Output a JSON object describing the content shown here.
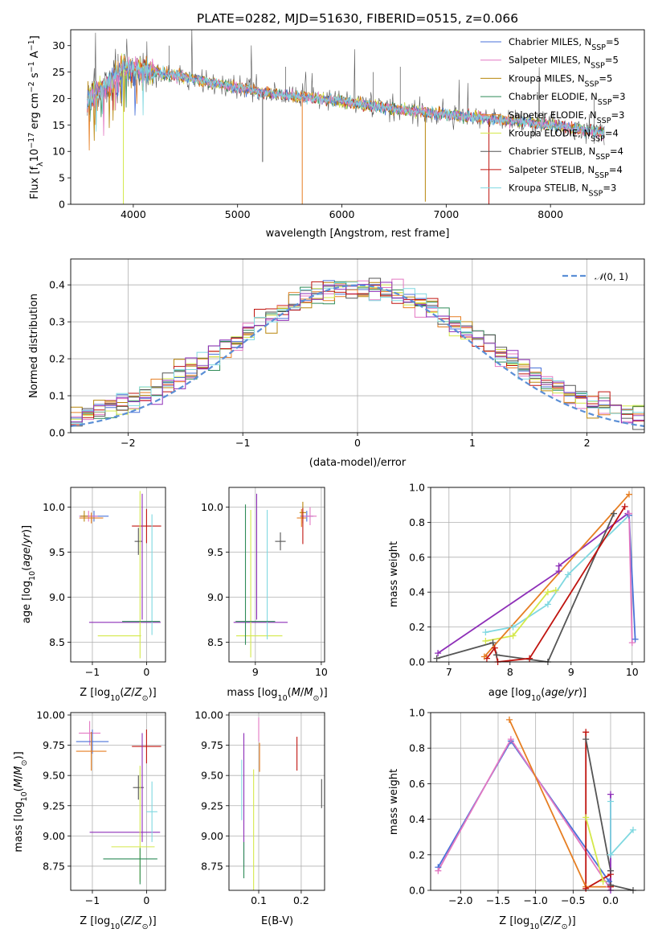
{
  "figure": {
    "title": "PLATE=0282, MJD=51630, FIBERID=0515, z=0.066"
  },
  "colors": {
    "Chabrier MILES": "#4a72d8",
    "Salpeter MILES": "#e377c2",
    "Kroupa MILES": "#b8860b",
    "Chabrier ELODIE": "#2e8b57",
    "Salpeter ELODIE": "#e67e22",
    "Kroupa ELODIE": "#d4e84a",
    "Chabrier STELIB": "#555555",
    "Salpeter STELIB": "#c0140f",
    "Kroupa STELIB": "#7fd8e0",
    "purple": "#8e2fb8",
    "normal": "#5b8fd6",
    "grid": "#b0b0b0"
  },
  "chart_data": [
    {
      "id": "spectrum",
      "type": "line",
      "title": "PLATE=0282, MJD=51630, FIBERID=0515, z=0.066",
      "xlabel": "wavelength [Angstrom, rest frame]",
      "ylabel": "Flux [fλ 10^-17 erg cm^-2 s^-1 A^-1]",
      "xlim": [
        3400,
        8900
      ],
      "ylim": [
        0,
        33
      ],
      "xticks": [
        4000,
        5000,
        6000,
        7000,
        8000
      ],
      "yticks": [
        0,
        5,
        10,
        15,
        20,
        25,
        30
      ],
      "grid": false,
      "legend_position": "top-right",
      "legend": [
        {
          "name": "Chabrier MILES",
          "sub": "SSP",
          "n": "5"
        },
        {
          "name": "Salpeter MILES",
          "sub": "SSP",
          "n": "5"
        },
        {
          "name": "Kroupa MILES",
          "sub": "SSP",
          "n": "5"
        },
        {
          "name": "Chabrier ELODIE",
          "sub": "SSP",
          "n": "3"
        },
        {
          "name": "Salpeter ELODIE",
          "sub": "SSP",
          "n": "3"
        },
        {
          "name": "Kroupa ELODIE",
          "sub": "SSP",
          "n": "4"
        },
        {
          "name": "Chabrier STELIB",
          "sub": "SSP",
          "n": "4"
        },
        {
          "name": "Salpeter STELIB",
          "sub": "SSP",
          "n": "4"
        },
        {
          "name": "Kroupa STELIB",
          "sub": "SSP",
          "n": "3"
        }
      ],
      "continuum": [
        [
          3560,
          20.5
        ],
        [
          3700,
          21.5
        ],
        [
          3800,
          23.5
        ],
        [
          3900,
          25.5
        ],
        [
          4000,
          25.5
        ],
        [
          4200,
          25
        ],
        [
          4500,
          24
        ],
        [
          5000,
          22
        ],
        [
          5500,
          20.5
        ],
        [
          6000,
          19.5
        ],
        [
          6500,
          18
        ],
        [
          7000,
          17
        ],
        [
          7500,
          16
        ],
        [
          8000,
          15
        ],
        [
          8500,
          13.5
        ]
      ],
      "spikes": [
        [
          3905,
          0
        ],
        [
          5240,
          8
        ],
        [
          5620,
          0
        ],
        [
          6800,
          0.5
        ],
        [
          7410,
          0
        ]
      ]
    },
    {
      "id": "residuals",
      "type": "line",
      "xlabel": "(data-model)/error",
      "ylabel": "Normed distribution",
      "xlim": [
        -2.5,
        2.5
      ],
      "ylim": [
        0,
        0.47
      ],
      "xticks": [
        -2,
        -1,
        0,
        1,
        2
      ],
      "yticks": [
        0.0,
        0.1,
        0.2,
        0.3,
        0.4
      ],
      "grid": true,
      "legend_position": "top-right",
      "legend": [
        {
          "name": "N(0,1)"
        }
      ],
      "bin_width": 0.1,
      "bin_start": -2.5
    },
    {
      "id": "age-vs-Z",
      "type": "scatter",
      "xlabel": "Z [log10(Z/Z⊙)]",
      "ylabel": "age  [log10(age/yr)]",
      "xlim": [
        -1.4,
        0.35
      ],
      "ylim": [
        8.28,
        10.22
      ],
      "xticks": [
        -1,
        0
      ],
      "yticks": [
        8.5,
        9.0,
        9.5,
        10.0
      ],
      "grid": true,
      "points": [
        {
          "c": "Chabrier MILES",
          "x": -0.97,
          "y": 9.9,
          "xe": 0.27,
          "ye": 0.06
        },
        {
          "c": "Salpeter MILES",
          "x": -1.07,
          "y": 9.9,
          "xe": 0.17,
          "ye": 0.06
        },
        {
          "c": "Salpeter ELODIE",
          "x": -1.02,
          "y": 9.88,
          "xe": 0.22,
          "ye": 0.06
        },
        {
          "c": "Kroupa MILES",
          "x": -1.15,
          "y": 9.9,
          "xe": 0.07,
          "ye": 0.06
        },
        {
          "c": "Chabrier STELIB",
          "x": -0.15,
          "y": 9.62,
          "xe": 0.07,
          "ye": 0.15
        },
        {
          "c": "Salpeter STELIB",
          "x": 0.0,
          "y": 9.79,
          "xe": 0.27,
          "ye": 0.19
        },
        {
          "c": "purple",
          "x": -0.4,
          "y": 8.72,
          "xe": 0.66,
          "ye": 0.0
        },
        {
          "c": "purple",
          "x": -0.08,
          "y": 9.45,
          "xe": 0.0,
          "ye": 0.7
        },
        {
          "c": "Kroupa ELODIE",
          "x": -0.5,
          "y": 8.57,
          "xe": 0.4,
          "ye": 0.0
        },
        {
          "c": "Kroupa ELODIE",
          "x": -0.12,
          "y": 9.25,
          "xe": 0.0,
          "ye": 0.93
        },
        {
          "c": "Kroupa STELIB",
          "x": 0.1,
          "y": 9.25,
          "xe": 0.0,
          "ye": 0.67
        },
        {
          "c": "Chabrier ELODIE",
          "x": -0.1,
          "y": 8.73,
          "xe": 0.35,
          "ye": 0.0
        }
      ]
    },
    {
      "id": "age-vs-mass",
      "type": "scatter",
      "xlabel": "mass [log10(M/M⊙)]",
      "ylabel": "",
      "xlim": [
        8.6,
        10.05
      ],
      "ylim": [
        8.28,
        10.22
      ],
      "xticks": [
        9,
        10
      ],
      "yticks": [
        8.5,
        9.0,
        9.5,
        10.0
      ],
      "grid": true,
      "points": [
        {
          "c": "Chabrier MILES",
          "x": 9.78,
          "y": 9.9,
          "xe": 0.1,
          "ye": 0.06
        },
        {
          "c": "Salpeter MILES",
          "x": 9.83,
          "y": 9.9,
          "xe": 0.1,
          "ye": 0.1
        },
        {
          "c": "Salpeter ELODIE",
          "x": 9.7,
          "y": 9.88,
          "xe": 0.07,
          "ye": 0.1
        },
        {
          "c": "Kroupa MILES",
          "x": 9.72,
          "y": 9.94,
          "xe": 0.05,
          "ye": 0.12
        },
        {
          "c": "Chabrier STELIB",
          "x": 9.38,
          "y": 9.62,
          "xe": 0.08,
          "ye": 0.1
        },
        {
          "c": "Salpeter STELIB",
          "x": 9.72,
          "y": 9.79,
          "xe": 0.0,
          "ye": 0.2
        },
        {
          "c": "purple",
          "x": 9.08,
          "y": 8.72,
          "xe": 0.41,
          "ye": 0.0
        },
        {
          "c": "purple",
          "x": 9.02,
          "y": 9.45,
          "xe": 0.0,
          "ye": 0.7
        },
        {
          "c": "Kroupa ELODIE",
          "x": 9.06,
          "y": 8.57,
          "xe": 0.35,
          "ye": 0.0
        },
        {
          "c": "Kroupa ELODIE",
          "x": 8.93,
          "y": 9.15,
          "xe": 0.0,
          "ye": 0.82
        },
        {
          "c": "Kroupa STELIB",
          "x": 9.18,
          "y": 9.25,
          "xe": 0.0,
          "ye": 0.72
        },
        {
          "c": "Chabrier ELODIE",
          "x": 8.85,
          "y": 9.25,
          "xe": 0.0,
          "ye": 0.78
        },
        {
          "c": "Chabrier ELODIE",
          "x": 9.0,
          "y": 8.73,
          "xe": 0.3,
          "ye": 0.0
        }
      ]
    },
    {
      "id": "mw-vs-age",
      "type": "line",
      "xlabel": "age  [log10(age/yr)]",
      "ylabel": "mass weight",
      "xlim": [
        6.7,
        10.2
      ],
      "ylim": [
        0,
        1
      ],
      "xticks": [
        7,
        8,
        9,
        10
      ],
      "yticks": [
        0.0,
        0.2,
        0.4,
        0.6,
        0.8,
        1.0
      ],
      "grid": true,
      "series": [
        {
          "c": "purple",
          "points": [
            [
              6.82,
              0.05
            ],
            [
              8.8,
              0.52
            ],
            [
              8.8,
              0.55
            ],
            [
              9.93,
              0.85
            ]
          ]
        },
        {
          "c": "Kroupa STELIB",
          "points": [
            [
              7.6,
              0.17
            ],
            [
              8.05,
              0.2
            ],
            [
              8.62,
              0.33
            ],
            [
              8.95,
              0.5
            ],
            [
              9.95,
              0.84
            ]
          ]
        },
        {
          "c": "Kroupa ELODIE",
          "points": [
            [
              7.6,
              0.12
            ],
            [
              8.05,
              0.15
            ],
            [
              8.62,
              0.4
            ],
            [
              8.75,
              0.41
            ]
          ]
        },
        {
          "c": "Chabrier STELIB",
          "points": [
            [
              6.8,
              0.02
            ],
            [
              7.72,
              0.11
            ],
            [
              7.78,
              0.04
            ],
            [
              8.62,
              0.0
            ],
            [
              9.7,
              0.85
            ]
          ]
        },
        {
          "c": "Salpeter STELIB",
          "points": [
            [
              7.62,
              0.02
            ],
            [
              7.75,
              0.08
            ],
            [
              7.8,
              0.0
            ],
            [
              8.32,
              0.02
            ],
            [
              9.88,
              0.89
            ]
          ]
        },
        {
          "c": "Salpeter ELODIE",
          "points": [
            [
              7.58,
              0.03
            ],
            [
              9.95,
              0.96
            ]
          ]
        },
        {
          "c": "Chabrier MILES",
          "points": [
            [
              9.95,
              0.84
            ],
            [
              10.05,
              0.13
            ]
          ]
        },
        {
          "c": "Salpeter MILES",
          "points": [
            [
              9.95,
              0.85
            ],
            [
              10.0,
              0.11
            ]
          ]
        }
      ]
    },
    {
      "id": "mass-vs-Z",
      "type": "scatter",
      "xlabel": "Z [log10(Z/Z⊙)]",
      "ylabel": "mass [log10(M/M⊙)]",
      "xlim": [
        -1.4,
        0.35
      ],
      "ylim": [
        8.55,
        10.02
      ],
      "xticks": [
        -1,
        0
      ],
      "yticks": [
        8.75,
        9.0,
        9.25,
        9.5,
        9.75,
        10.0
      ],
      "grid": true,
      "points": [
        {
          "c": "Salpeter MILES",
          "x": -1.05,
          "y": 9.85,
          "xe": 0.2,
          "ye": 0.1
        },
        {
          "c": "Chabrier MILES",
          "x": -1.0,
          "y": 9.78,
          "xe": 0.3,
          "ye": 0.1
        },
        {
          "c": "Salpeter ELODIE",
          "x": -1.02,
          "y": 9.7,
          "xe": 0.28,
          "ye": 0.16
        },
        {
          "c": "Chabrier STELIB",
          "x": -0.15,
          "y": 9.4,
          "xe": 0.1,
          "ye": 0.1
        },
        {
          "c": "Salpeter STELIB",
          "x": 0.0,
          "y": 9.74,
          "xe": 0.27,
          "ye": 0.14
        },
        {
          "c": "purple",
          "x": -0.4,
          "y": 9.03,
          "xe": 0.65,
          "ye": 0.0
        },
        {
          "c": "purple",
          "x": -0.08,
          "y": 9.4,
          "xe": 0.0,
          "ye": 0.45
        },
        {
          "c": "Kroupa ELODIE",
          "x": -0.25,
          "y": 8.91,
          "xe": 0.4,
          "ye": 0.0
        },
        {
          "c": "Kroupa ELODIE",
          "x": -0.12,
          "y": 9.1,
          "xe": 0.0,
          "ye": 0.48
        },
        {
          "c": "Kroupa STELIB",
          "x": 0.1,
          "y": 9.2,
          "xe": 0.1,
          "ye": 0.25
        },
        {
          "c": "Chabrier ELODIE",
          "x": -0.3,
          "y": 8.81,
          "xe": 0.5,
          "ye": 0.0
        },
        {
          "c": "Chabrier ELODIE",
          "x": -0.12,
          "y": 8.75,
          "xe": 0.0,
          "ye": 0.15
        }
      ]
    },
    {
      "id": "mass-vs-ebv",
      "type": "scatter",
      "xlabel": "E(B-V)",
      "ylabel": "",
      "xlim": [
        0.03,
        0.255
      ],
      "ylim": [
        8.55,
        10.02
      ],
      "xticks": [
        0.1,
        0.2
      ],
      "yticks": [
        8.75,
        9.0,
        9.25,
        9.5,
        9.75,
        10.0
      ],
      "grid": true,
      "points": [
        {
          "c": "purple",
          "x": 0.065,
          "y": 9.3,
          "xe": 0.0,
          "ye": 0.55
        },
        {
          "c": "Chabrier ELODIE",
          "x": 0.065,
          "y": 8.8,
          "xe": 0.0,
          "ye": 0.15
        },
        {
          "c": "Kroupa STELIB",
          "x": 0.06,
          "y": 9.38,
          "xe": 0.0,
          "ye": 0.25
        },
        {
          "c": "Kroupa ELODIE",
          "x": 0.088,
          "y": 9.05,
          "xe": 0.0,
          "ye": 0.5
        },
        {
          "c": "Salpeter MILES",
          "x": 0.1,
          "y": 9.88,
          "xe": 0.0,
          "ye": 0.1
        },
        {
          "c": "Salpeter ELODIE",
          "x": 0.102,
          "y": 9.65,
          "xe": 0.0,
          "ye": 0.12
        },
        {
          "c": "Salpeter STELIB",
          "x": 0.19,
          "y": 9.68,
          "xe": 0.0,
          "ye": 0.14
        },
        {
          "c": "Chabrier STELIB",
          "x": 0.248,
          "y": 9.35,
          "xe": 0.0,
          "ye": 0.12
        }
      ]
    },
    {
      "id": "mw-vs-Z",
      "type": "line",
      "xlabel": "Z [log10(Z/Z⊙)]",
      "ylabel": "mass weight",
      "xlim": [
        -2.4,
        0.45
      ],
      "ylim": [
        0,
        1
      ],
      "xticks": [
        -2.0,
        -1.5,
        -1.0,
        -0.5,
        0.0
      ],
      "yticks": [
        0.0,
        0.2,
        0.4,
        0.6,
        0.8,
        1.0
      ],
      "grid": true,
      "series": [
        {
          "c": "Chabrier MILES",
          "points": [
            [
              -2.3,
              0.13
            ],
            [
              -1.33,
              0.84
            ],
            [
              -0.02,
              0.05
            ]
          ]
        },
        {
          "c": "Salpeter MILES",
          "points": [
            [
              -2.3,
              0.11
            ],
            [
              -1.33,
              0.85
            ],
            [
              -0.02,
              0.02
            ]
          ]
        },
        {
          "c": "Salpeter ELODIE",
          "points": [
            [
              -1.35,
              0.96
            ],
            [
              -0.33,
              0.02
            ],
            [
              0.0,
              0.02
            ]
          ]
        },
        {
          "c": "Salpeter STELIB",
          "points": [
            [
              -0.33,
              0.89
            ],
            [
              -0.33,
              0.01
            ],
            [
              0.0,
              0.09
            ],
            [
              0.0,
              0.02
            ]
          ]
        },
        {
          "c": "Chabrier STELIB",
          "points": [
            [
              -0.33,
              0.85
            ],
            [
              0.0,
              0.11
            ],
            [
              0.0,
              0.03
            ],
            [
              0.3,
              0.0
            ]
          ]
        },
        {
          "c": "purple",
          "points": [
            [
              0.0,
              0.54
            ],
            [
              0.0,
              0.0
            ]
          ]
        },
        {
          "c": "Kroupa ELODIE",
          "points": [
            [
              -0.33,
              0.41
            ],
            [
              -0.1,
              0.05
            ]
          ]
        },
        {
          "c": "Kroupa STELIB",
          "points": [
            [
              0.0,
              0.5
            ],
            [
              0.0,
              0.2
            ],
            [
              0.3,
              0.34
            ]
          ]
        }
      ]
    }
  ]
}
